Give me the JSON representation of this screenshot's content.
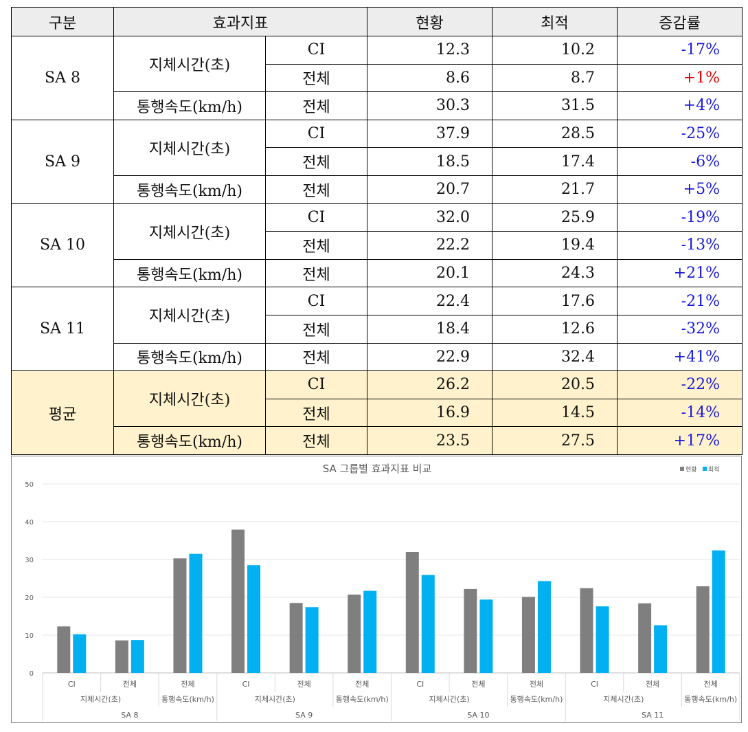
{
  "table": {
    "headers": [
      "구분",
      "효과지표",
      "현황",
      "최적",
      "증감률"
    ],
    "groups": [
      {
        "name": "SA  8",
        "rows": [
          {
            "metric": "지체시간(초)",
            "sub": "CI",
            "current": "12.3",
            "optimal": "10.2",
            "change": "-17%"
          },
          {
            "metric": "지체시간(초)",
            "sub": "전체",
            "current": "8.6",
            "optimal": "8.7",
            "change": "+1%"
          },
          {
            "metric": "통행속도(km/h)",
            "sub": "전체",
            "current": "30.3",
            "optimal": "31.5",
            "change": "+4%"
          }
        ]
      },
      {
        "name": "SA  9",
        "rows": [
          {
            "metric": "지체시간(초)",
            "sub": "CI",
            "current": "37.9",
            "optimal": "28.5",
            "change": "-25%"
          },
          {
            "metric": "지체시간(초)",
            "sub": "전체",
            "current": "18.5",
            "optimal": "17.4",
            "change": "-6%"
          },
          {
            "metric": "통행속도(km/h)",
            "sub": "전체",
            "current": "20.7",
            "optimal": "21.7",
            "change": "+5%"
          }
        ]
      },
      {
        "name": "SA  10",
        "rows": [
          {
            "metric": "지체시간(초)",
            "sub": "CI",
            "current": "32.0",
            "optimal": "25.9",
            "change": "-19%"
          },
          {
            "metric": "지체시간(초)",
            "sub": "전체",
            "current": "22.2",
            "optimal": "19.4",
            "change": "-13%"
          },
          {
            "metric": "통행속도(km/h)",
            "sub": "전체",
            "current": "20.1",
            "optimal": "24.3",
            "change": "+21%"
          }
        ]
      },
      {
        "name": "SA  11",
        "rows": [
          {
            "metric": "지체시간(초)",
            "sub": "CI",
            "current": "22.4",
            "optimal": "17.6",
            "change": "-21%"
          },
          {
            "metric": "지체시간(초)",
            "sub": "전체",
            "current": "18.4",
            "optimal": "12.6",
            "change": "-32%"
          },
          {
            "metric": "통행속도(km/h)",
            "sub": "전체",
            "current": "22.9",
            "optimal": "32.4",
            "change": "+41%"
          }
        ]
      },
      {
        "name": "평균",
        "rows": [
          {
            "metric": "지체시간(초)",
            "sub": "CI",
            "current": "26.2",
            "optimal": "20.5",
            "change": "-22%"
          },
          {
            "metric": "지체시간(초)",
            "sub": "전체",
            "current": "16.9",
            "optimal": "14.5",
            "change": "-14%"
          },
          {
            "metric": "통행속도(km/h)",
            "sub": "전체",
            "current": "23.5",
            "optimal": "27.5",
            "change": "+17%"
          }
        ]
      }
    ]
  },
  "colors": {
    "current": "#7f7f7f",
    "optimal": "#00b0f0",
    "increase_red": "#e00000",
    "change_blue": "#1a1adc",
    "avg_bg": "#fff2cc"
  },
  "chart_data": {
    "type": "bar",
    "title": "SA 그룹별 효과지표 비교",
    "ylim": [
      0,
      50
    ],
    "yticks": [
      0,
      10,
      20,
      30,
      40,
      50
    ],
    "legend": {
      "position": "top-right",
      "entries": [
        "현황",
        "최적"
      ]
    },
    "categories": [
      {
        "sub": "CI",
        "metric": "지체시간(초)",
        "group": "SA 8"
      },
      {
        "sub": "전체",
        "metric": "지체시간(초)",
        "group": "SA 8"
      },
      {
        "sub": "전체",
        "metric": "통행속도(km/h)",
        "group": "SA 8"
      },
      {
        "sub": "CI",
        "metric": "지체시간(초)",
        "group": "SA 9"
      },
      {
        "sub": "전체",
        "metric": "지체시간(초)",
        "group": "SA 9"
      },
      {
        "sub": "전체",
        "metric": "통행속도(km/h)",
        "group": "SA 9"
      },
      {
        "sub": "CI",
        "metric": "지체시간(초)",
        "group": "SA 10"
      },
      {
        "sub": "전체",
        "metric": "지체시간(초)",
        "group": "SA 10"
      },
      {
        "sub": "전체",
        "metric": "통행속도(km/h)",
        "group": "SA 10"
      },
      {
        "sub": "CI",
        "metric": "지체시간(초)",
        "group": "SA 11"
      },
      {
        "sub": "전체",
        "metric": "지체시간(초)",
        "group": "SA 11"
      },
      {
        "sub": "전체",
        "metric": "통행속도(km/h)",
        "group": "SA 11"
      }
    ],
    "groups": [
      "SA 8",
      "SA 9",
      "SA 10",
      "SA 11"
    ],
    "series": [
      {
        "name": "현황",
        "values": [
          12.3,
          8.6,
          30.3,
          37.9,
          18.5,
          20.7,
          32.0,
          22.2,
          20.1,
          22.4,
          18.4,
          22.9
        ]
      },
      {
        "name": "최적",
        "values": [
          10.2,
          8.7,
          31.5,
          28.5,
          17.4,
          21.7,
          25.9,
          19.4,
          24.3,
          17.6,
          12.6,
          32.4
        ]
      }
    ]
  }
}
